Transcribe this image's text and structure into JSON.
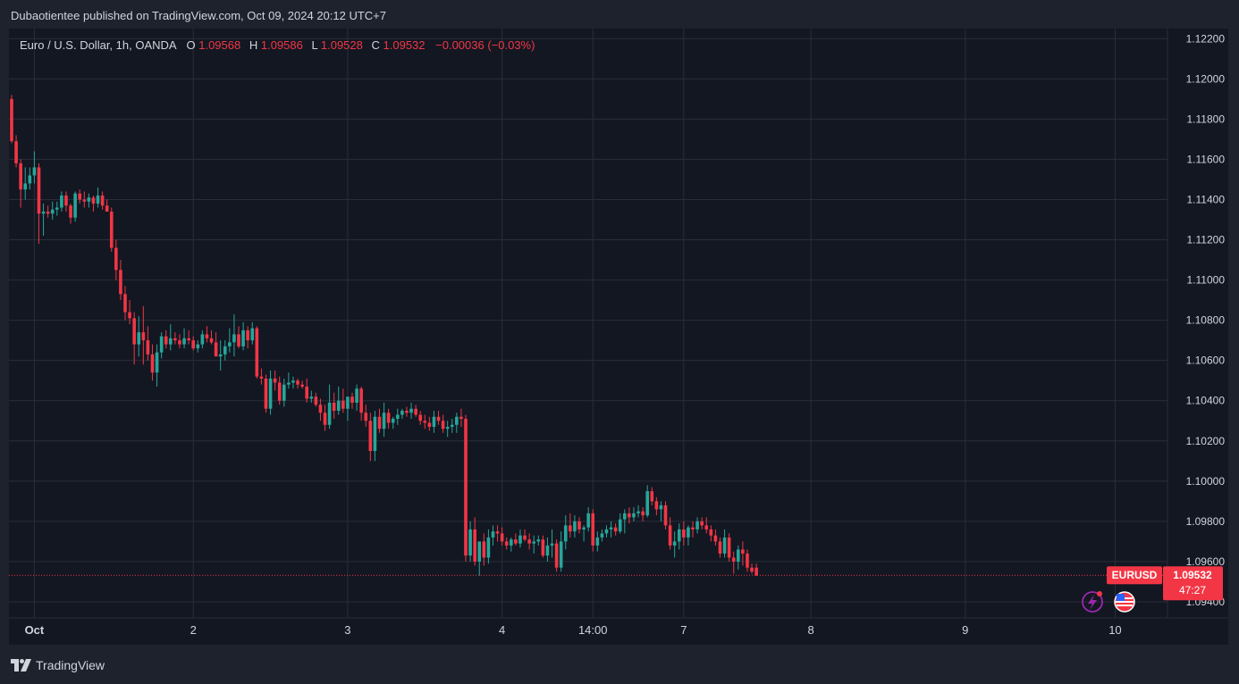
{
  "header": {
    "published": "Dubaotientee published on TradingView.com, Oct 09, 2024 20:12 UTC+7"
  },
  "legend": {
    "symbol_text": "Euro / U.S. Dollar, 1h, OANDA",
    "o_label": "O",
    "o_value": "1.09568",
    "h_label": "H",
    "h_value": "1.09586",
    "l_label": "L",
    "l_value": "1.09528",
    "c_label": "C",
    "c_value": "1.09532",
    "change": "−0.00036 (−0.03%)"
  },
  "price_tag": {
    "symbol": "EURUSD",
    "price": "1.09532",
    "countdown": "47:27"
  },
  "footer": {
    "brand": "TradingView"
  },
  "colors": {
    "up": "#26a69a",
    "down": "#f23645",
    "background": "#131722",
    "grid": "#2a2e39",
    "text": "#d1d4dc"
  },
  "icons": [
    "lightning-icon",
    "us-flag-icon",
    "tradingview-logo-icon"
  ],
  "chart_data": {
    "type": "candlestick",
    "ylim": [
      1.0932,
      1.1225
    ],
    "y_ticks": [
      "1.12200",
      "1.12000",
      "1.11800",
      "1.11600",
      "1.11400",
      "1.11200",
      "1.11000",
      "1.10800",
      "1.10600",
      "1.10400",
      "1.10200",
      "1.10000",
      "1.09800",
      "1.09600",
      "1.09400"
    ],
    "x_ticks": [
      {
        "label": "Oct",
        "index": 5
      },
      {
        "label": "2",
        "index": 40
      },
      {
        "label": "3",
        "index": 74
      },
      {
        "label": "4",
        "index": 108
      },
      {
        "label": "14:00",
        "index": 128
      },
      {
        "label": "7",
        "index": 148
      },
      {
        "label": "8",
        "index": 176
      },
      {
        "label": "9",
        "index": 210
      },
      {
        "label": "10",
        "index": 243
      }
    ],
    "last_price": 1.09532,
    "candles": [
      [
        1.119,
        1.1192,
        1.1168,
        1.1169
      ],
      [
        1.1169,
        1.1172,
        1.1156,
        1.1158
      ],
      [
        1.1158,
        1.116,
        1.1136,
        1.1145
      ],
      [
        1.1145,
        1.1156,
        1.114,
        1.1148
      ],
      [
        1.1148,
        1.1156,
        1.1145,
        1.1152
      ],
      [
        1.1152,
        1.1164,
        1.1148,
        1.1156
      ],
      [
        1.1156,
        1.1158,
        1.1118,
        1.1133
      ],
      [
        1.1133,
        1.1138,
        1.1122,
        1.1134
      ],
      [
        1.1134,
        1.1137,
        1.1131,
        1.1133
      ],
      [
        1.1133,
        1.1139,
        1.113,
        1.1135
      ],
      [
        1.1135,
        1.1139,
        1.1132,
        1.1136
      ],
      [
        1.1136,
        1.1144,
        1.1134,
        1.1142
      ],
      [
        1.1142,
        1.1144,
        1.1134,
        1.1137
      ],
      [
        1.1137,
        1.1138,
        1.1128,
        1.1131
      ],
      [
        1.1131,
        1.1144,
        1.1129,
        1.1143
      ],
      [
        1.1143,
        1.1145,
        1.1138,
        1.114
      ],
      [
        1.114,
        1.1144,
        1.1136,
        1.1139
      ],
      [
        1.1139,
        1.1143,
        1.1136,
        1.1141
      ],
      [
        1.1141,
        1.1142,
        1.1134,
        1.1138
      ],
      [
        1.1138,
        1.1146,
        1.1136,
        1.1142
      ],
      [
        1.1142,
        1.1144,
        1.1135,
        1.1137
      ],
      [
        1.1137,
        1.114,
        1.1134,
        1.1134
      ],
      [
        1.1134,
        1.1136,
        1.1114,
        1.1116
      ],
      [
        1.1116,
        1.112,
        1.11,
        1.1105
      ],
      [
        1.1105,
        1.111,
        1.109,
        1.1093
      ],
      [
        1.1093,
        1.1097,
        1.108,
        1.1084
      ],
      [
        1.1084,
        1.109,
        1.1078,
        1.1081
      ],
      [
        1.1081,
        1.1084,
        1.1058,
        1.1068
      ],
      [
        1.1068,
        1.1082,
        1.1062,
        1.1074
      ],
      [
        1.1074,
        1.1087,
        1.1058,
        1.107
      ],
      [
        1.107,
        1.1077,
        1.106,
        1.1063
      ],
      [
        1.1063,
        1.1068,
        1.105,
        1.1054
      ],
      [
        1.1054,
        1.1068,
        1.1047,
        1.1064
      ],
      [
        1.1064,
        1.1074,
        1.1061,
        1.1072
      ],
      [
        1.1072,
        1.1075,
        1.1066,
        1.1068
      ],
      [
        1.1068,
        1.1078,
        1.1065,
        1.1071
      ],
      [
        1.1071,
        1.1074,
        1.1068,
        1.107
      ],
      [
        1.107,
        1.1073,
        1.1066,
        1.1068
      ],
      [
        1.1068,
        1.1076,
        1.1066,
        1.1071
      ],
      [
        1.1071,
        1.1075,
        1.1068,
        1.107
      ],
      [
        1.107,
        1.1072,
        1.1065,
        1.1066
      ],
      [
        1.1066,
        1.107,
        1.1064,
        1.1068
      ],
      [
        1.1068,
        1.1075,
        1.1066,
        1.1073
      ],
      [
        1.1073,
        1.1077,
        1.1069,
        1.1071
      ],
      [
        1.1071,
        1.1075,
        1.1068,
        1.1069
      ],
      [
        1.1069,
        1.1074,
        1.1062,
        1.1062
      ],
      [
        1.1062,
        1.107,
        1.1055,
        1.1063
      ],
      [
        1.1063,
        1.107,
        1.106,
        1.1067
      ],
      [
        1.1067,
        1.1076,
        1.1064,
        1.1069
      ],
      [
        1.1069,
        1.1083,
        1.1062,
        1.1073
      ],
      [
        1.1073,
        1.1077,
        1.1066,
        1.1067
      ],
      [
        1.1067,
        1.1079,
        1.1065,
        1.1075
      ],
      [
        1.1075,
        1.1077,
        1.1066,
        1.107
      ],
      [
        1.107,
        1.1079,
        1.1068,
        1.1076
      ],
      [
        1.1076,
        1.1077,
        1.1051,
        1.1052
      ],
      [
        1.1052,
        1.1056,
        1.1048,
        1.1051
      ],
      [
        1.1051,
        1.1053,
        1.1034,
        1.1036
      ],
      [
        1.1036,
        1.1055,
        1.1033,
        1.1051
      ],
      [
        1.1051,
        1.1055,
        1.1045,
        1.1049
      ],
      [
        1.1049,
        1.1052,
        1.1038,
        1.104
      ],
      [
        1.104,
        1.1051,
        1.1037,
        1.1048
      ],
      [
        1.1048,
        1.1054,
        1.1046,
        1.1049
      ],
      [
        1.1049,
        1.1052,
        1.1046,
        1.105
      ],
      [
        1.105,
        1.1051,
        1.1046,
        1.1048
      ],
      [
        1.1048,
        1.105,
        1.1046,
        1.1047
      ],
      [
        1.1047,
        1.1051,
        1.1039,
        1.1041
      ],
      [
        1.1041,
        1.1045,
        1.1039,
        1.1042
      ],
      [
        1.1042,
        1.1044,
        1.1037,
        1.1038
      ],
      [
        1.1038,
        1.1041,
        1.103,
        1.1034
      ],
      [
        1.1034,
        1.1038,
        1.1025,
        1.1028
      ],
      [
        1.1028,
        1.1048,
        1.1026,
        1.1039
      ],
      [
        1.1039,
        1.1044,
        1.1031,
        1.1035
      ],
      [
        1.1035,
        1.1047,
        1.1033,
        1.104
      ],
      [
        1.104,
        1.1046,
        1.1034,
        1.1036
      ],
      [
        1.1036,
        1.104,
        1.103,
        1.1042
      ],
      [
        1.1042,
        1.1044,
        1.1036,
        1.1039
      ],
      [
        1.1039,
        1.1048,
        1.1035,
        1.1046
      ],
      [
        1.1046,
        1.1047,
        1.103,
        1.1034
      ],
      [
        1.1034,
        1.1038,
        1.1027,
        1.103
      ],
      [
        1.103,
        1.1034,
        1.101,
        1.1015
      ],
      [
        1.1015,
        1.1035,
        1.101,
        1.1032
      ],
      [
        1.1032,
        1.1036,
        1.1024,
        1.1026
      ],
      [
        1.1026,
        1.1039,
        1.1022,
        1.1034
      ],
      [
        1.1034,
        1.1036,
        1.1026,
        1.1029
      ],
      [
        1.1029,
        1.1032,
        1.1026,
        1.1031
      ],
      [
        1.1031,
        1.1036,
        1.1028,
        1.1033
      ],
      [
        1.1033,
        1.1036,
        1.1031,
        1.1035
      ],
      [
        1.1035,
        1.1037,
        1.1032,
        1.1034
      ],
      [
        1.1034,
        1.1039,
        1.1031,
        1.1036
      ],
      [
        1.1036,
        1.1038,
        1.1032,
        1.1033
      ],
      [
        1.1033,
        1.1035,
        1.1028,
        1.103
      ],
      [
        1.103,
        1.1033,
        1.1026,
        1.1029
      ],
      [
        1.1029,
        1.1032,
        1.1025,
        1.1027
      ],
      [
        1.1027,
        1.1035,
        1.1024,
        1.1032
      ],
      [
        1.1032,
        1.1035,
        1.1028,
        1.103
      ],
      [
        1.103,
        1.1033,
        1.1024,
        1.1026
      ],
      [
        1.1026,
        1.103,
        1.1022,
        1.1027
      ],
      [
        1.1027,
        1.1031,
        1.1024,
        1.1028
      ],
      [
        1.1028,
        1.1034,
        1.1024,
        1.1032
      ],
      [
        1.1032,
        1.1036,
        1.1027,
        1.1031
      ],
      [
        1.1031,
        1.1033,
        1.096,
        1.0963
      ],
      [
        1.0963,
        1.098,
        1.096,
        1.0976
      ],
      [
        1.0976,
        1.0982,
        1.0958,
        1.096
      ],
      [
        1.096,
        1.097,
        1.0953,
        1.097
      ],
      [
        1.097,
        1.0974,
        1.0958,
        1.0962
      ],
      [
        1.0962,
        1.0976,
        1.0959,
        1.0972
      ],
      [
        1.0972,
        1.0978,
        1.0968,
        1.0975
      ],
      [
        1.0975,
        1.0978,
        1.097,
        1.0974
      ],
      [
        1.0974,
        1.0977,
        1.0968,
        1.097
      ],
      [
        1.097,
        1.0972,
        1.0966,
        1.0968
      ],
      [
        1.0968,
        1.0972,
        1.0965,
        1.0971
      ],
      [
        1.0971,
        1.0974,
        1.0968,
        1.0969
      ],
      [
        1.0969,
        1.0976,
        1.0967,
        1.0973
      ],
      [
        1.0973,
        1.0976,
        1.097,
        1.0971
      ],
      [
        1.0971,
        1.0974,
        1.0966,
        1.0969
      ],
      [
        1.0969,
        1.0973,
        1.0964,
        1.097
      ],
      [
        1.097,
        1.0973,
        1.0968,
        1.0971
      ],
      [
        1.0971,
        1.0973,
        1.0962,
        1.0963
      ],
      [
        1.0963,
        1.0972,
        1.096,
        1.0968
      ],
      [
        1.0968,
        1.0976,
        1.0962,
        1.0969
      ],
      [
        1.0969,
        1.0971,
        1.0955,
        1.0957
      ],
      [
        1.0957,
        1.0975,
        1.0955,
        1.097
      ],
      [
        1.097,
        1.0983,
        1.0966,
        1.0978
      ],
      [
        1.0978,
        1.0984,
        1.0972,
        1.0975
      ],
      [
        1.0975,
        1.0983,
        1.0972,
        1.098
      ],
      [
        1.098,
        1.0982,
        1.0974,
        1.0976
      ],
      [
        1.0976,
        1.0978,
        1.097,
        1.0977
      ],
      [
        1.0977,
        1.0987,
        1.0975,
        1.0984
      ],
      [
        1.0984,
        1.0986,
        1.0965,
        1.0968
      ],
      [
        1.0968,
        1.0975,
        1.0965,
        1.0972
      ],
      [
        1.0972,
        1.0976,
        1.097,
        1.0974
      ],
      [
        1.0974,
        1.0978,
        1.0972,
        1.0976
      ],
      [
        1.0976,
        1.098,
        1.0972,
        1.0977
      ],
      [
        1.0977,
        1.0979,
        1.0973,
        1.0975
      ],
      [
        1.0975,
        1.0984,
        1.0974,
        1.0981
      ],
      [
        1.0981,
        1.0986,
        1.0974,
        1.0984
      ],
      [
        1.0984,
        1.0987,
        1.0979,
        1.0982
      ],
      [
        1.0982,
        1.0987,
        1.098,
        1.0984
      ],
      [
        1.0984,
        1.0988,
        1.0982,
        1.0985
      ],
      [
        1.0985,
        1.0987,
        1.098,
        1.0983
      ],
      [
        1.0983,
        1.0998,
        1.0982,
        1.0995
      ],
      [
        1.0995,
        1.0997,
        1.0988,
        1.099
      ],
      [
        1.099,
        1.0992,
        1.0983,
        1.0986
      ],
      [
        1.0986,
        1.099,
        1.098,
        1.0988
      ],
      [
        1.0988,
        1.099,
        1.0976,
        1.0978
      ],
      [
        1.0978,
        1.0982,
        1.0966,
        1.0968
      ],
      [
        1.0968,
        1.0975,
        1.0962,
        1.097
      ],
      [
        1.097,
        1.0979,
        1.0966,
        1.0976
      ],
      [
        1.0976,
        1.098,
        1.0968,
        1.0972
      ],
      [
        1.0972,
        1.0978,
        1.0968,
        1.0977
      ],
      [
        1.0977,
        1.098,
        1.0972,
        1.0976
      ],
      [
        1.0976,
        1.0982,
        1.0974,
        1.098
      ],
      [
        1.098,
        1.0982,
        1.0976,
        1.0978
      ],
      [
        1.0978,
        1.0982,
        1.0974,
        1.0976
      ],
      [
        1.0976,
        1.0978,
        1.097,
        1.0973
      ],
      [
        1.0973,
        1.0976,
        1.0968,
        1.097
      ],
      [
        1.097,
        1.0972,
        1.0962,
        1.0964
      ],
      [
        1.0964,
        1.0976,
        1.0962,
        1.0972
      ],
      [
        1.0972,
        1.0974,
        1.096,
        1.0962
      ],
      [
        1.0962,
        1.0965,
        1.0954,
        1.096
      ],
      [
        1.096,
        1.0968,
        1.0956,
        1.0966
      ],
      [
        1.0966,
        1.097,
        1.0958,
        1.0964
      ],
      [
        1.0964,
        1.0966,
        1.0955,
        1.0957
      ],
      [
        1.0957,
        1.0959,
        1.0954,
        1.0955
      ],
      [
        1.0957,
        1.0959,
        1.0953,
        1.0953
      ]
    ]
  }
}
